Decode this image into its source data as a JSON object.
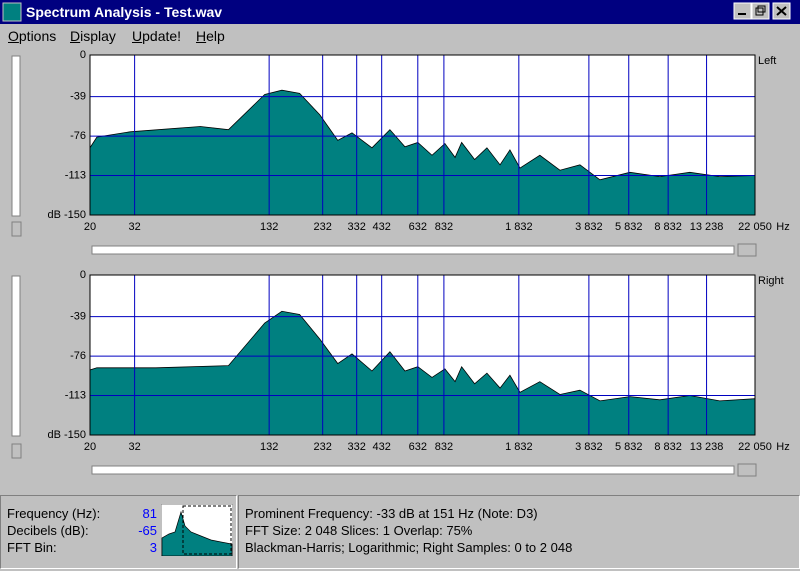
{
  "window": {
    "title": "Spectrum Analysis - Test.wav"
  },
  "menu": [
    "Options",
    "Display",
    "Update!",
    "Help"
  ],
  "chart_data": [
    {
      "type": "area",
      "title": "Left",
      "xlabel": "Hz",
      "xscale": "log",
      "color": "#008080",
      "grid": true,
      "x": [
        20,
        21.5,
        30.5,
        64,
        86,
        126,
        151,
        182,
        225,
        272,
        316,
        390,
        471,
        552,
        632,
        734,
        841,
        936,
        1003,
        1150,
        1309,
        1503,
        1668,
        1854,
        2286,
        2825,
        3487,
        4305,
        5903,
        8093,
        11100,
        15210,
        22050
      ],
      "values": [
        -87,
        -77,
        -72,
        -67,
        -70,
        -37,
        -33,
        -36,
        -56,
        -80,
        -73,
        -87,
        -70,
        -86,
        -82,
        -94,
        -83,
        -96,
        -82,
        -98,
        -87,
        -103,
        -89,
        -106,
        -94,
        -108,
        -103,
        -117,
        -110,
        -114,
        -110,
        -114,
        -113
      ],
      "xlim": [
        20,
        22050
      ],
      "xticks": [
        20,
        32,
        132,
        232,
        332,
        432,
        632,
        832,
        {
          "value": 1832,
          "label": "1 832"
        },
        {
          "value": 3832,
          "label": "3 832"
        },
        {
          "value": 5832,
          "label": "5 832"
        },
        {
          "value": 8832,
          "label": "8 832"
        },
        {
          "value": 13238,
          "label": "13 238"
        },
        {
          "value": 22050,
          "label": "22 050"
        }
      ],
      "ylim": [
        -150,
        0
      ],
      "yticks": [
        0,
        -39,
        -76,
        -113,
        {
          "value": -150,
          "label": "dB -150"
        }
      ]
    },
    {
      "type": "area",
      "title": "Right",
      "xlabel": "Hz",
      "xscale": "log",
      "color": "#008080",
      "grid": true,
      "x": [
        20,
        21.5,
        40,
        86,
        126,
        151,
        182,
        225,
        272,
        316,
        390,
        471,
        552,
        632,
        734,
        841,
        936,
        1003,
        1150,
        1309,
        1503,
        1668,
        1854,
        2286,
        2825,
        3487,
        4305,
        5903,
        8093,
        11100,
        15210,
        22050
      ],
      "values": [
        -89,
        -87,
        -87,
        -85,
        -45,
        -34,
        -37,
        -60,
        -83,
        -74,
        -90,
        -72,
        -90,
        -86,
        -96,
        -88,
        -100,
        -86,
        -102,
        -92,
        -106,
        -94,
        -110,
        -100,
        -112,
        -108,
        -118,
        -114,
        -117,
        -113,
        -118,
        -116
      ],
      "xlim": [
        20,
        22050
      ],
      "xticks": [
        20,
        32,
        132,
        232,
        332,
        432,
        632,
        832,
        {
          "value": 1832,
          "label": "1 832"
        },
        {
          "value": 3832,
          "label": "3 832"
        },
        {
          "value": 5832,
          "label": "5 832"
        },
        {
          "value": 8832,
          "label": "8 832"
        },
        {
          "value": 13238,
          "label": "13 238"
        },
        {
          "value": 22050,
          "label": "22 050"
        }
      ],
      "ylim": [
        -150,
        0
      ],
      "yticks": [
        0,
        -39,
        -76,
        -113,
        {
          "value": -150,
          "label": "dB -150"
        }
      ]
    }
  ],
  "status": {
    "fields": [
      {
        "label": "Frequency (Hz):",
        "value": 81
      },
      {
        "label": "Decibels (dB):",
        "value": -65
      },
      {
        "label": "FFT Bin:",
        "value": 3
      }
    ],
    "info": [
      "Prominent Frequency: -33 dB at 151 Hz (Note: D3)",
      "FFT Size: 2 048  Slices: 1  Overlap: 75%",
      "Blackman-Harris; Logarithmic; Right  Samples: 0 to 2 048"
    ]
  }
}
